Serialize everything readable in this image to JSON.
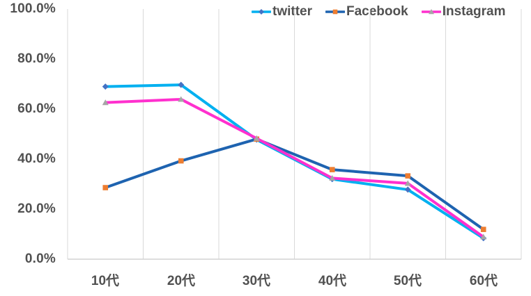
{
  "chart_data": {
    "type": "line",
    "title": "",
    "xlabel": "",
    "ylabel": "",
    "categories": [
      "10代",
      "20代",
      "30代",
      "40代",
      "50代",
      "60代"
    ],
    "series": [
      {
        "name": "twitter",
        "values": [
          69.0,
          69.7,
          47.8,
          32.0,
          27.8,
          8.4
        ],
        "line_color": "#00B0F0",
        "marker_color": "#4472C4",
        "marker": "diamond"
      },
      {
        "name": "Facebook",
        "values": [
          28.6,
          39.3,
          48.0,
          35.8,
          33.3,
          11.9
        ],
        "line_color": "#1E63B0",
        "marker_color": "#ED7D31",
        "marker": "square"
      },
      {
        "name": "Instagram",
        "values": [
          62.6,
          63.9,
          48.3,
          32.4,
          30.3,
          8.9
        ],
        "line_color": "#FF30CE",
        "marker_color": "#A6A6A6",
        "marker": "triangle"
      }
    ],
    "y_ticks": [
      "100.0%",
      "80.0%",
      "60.0%",
      "40.0%",
      "20.0%",
      "0.0%"
    ],
    "ylim": [
      0,
      100
    ],
    "y_step": 20,
    "grid": "vertical-only",
    "legend_position": "top"
  },
  "colors": {
    "text": "#515151",
    "gridline": "#D9D9D9",
    "axis_line": "#D2D2D2",
    "background": "#FFFFFF"
  }
}
